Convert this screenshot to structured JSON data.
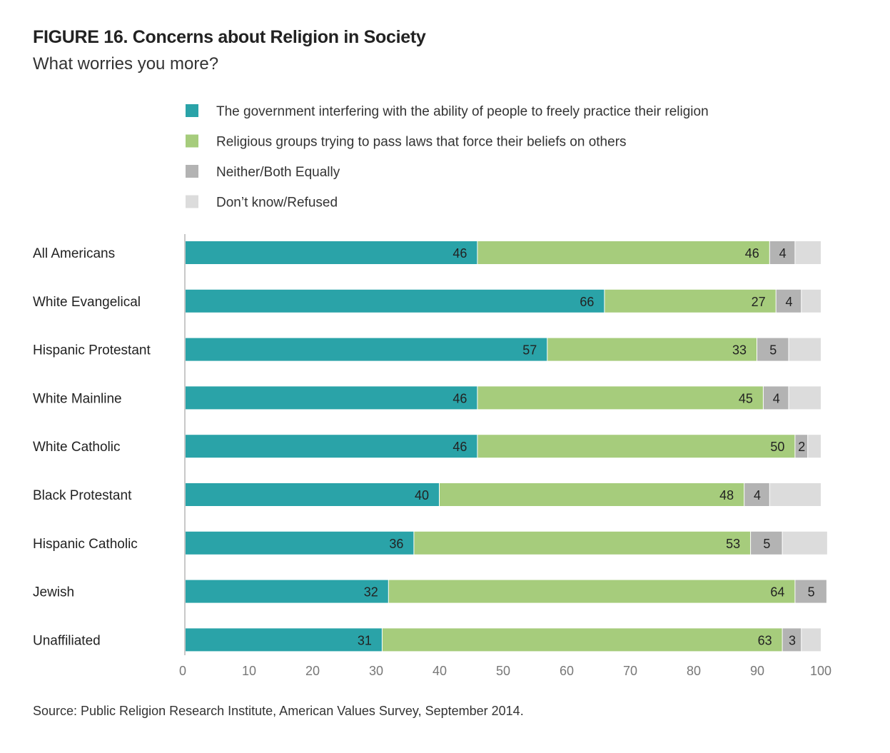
{
  "chart_data": {
    "type": "bar",
    "orientation": "horizontal",
    "stacked": true,
    "title": "FIGURE 16. Concerns about Religion in Society",
    "subtitle": "What worries you more?",
    "source": "Source: Public Religion Research Institute, American Values Survey, September 2014.",
    "categories": [
      "All Americans",
      "White Evangelical",
      "Hispanic Protestant",
      "White Mainline",
      "White Catholic",
      "Black Protestant",
      "Hispanic Catholic",
      "Jewish",
      "Unaffiliated"
    ],
    "series": [
      {
        "name": "The government interfering with the ability of people to freely practice their religion",
        "color": "#2aa3a8",
        "values": [
          46,
          66,
          57,
          46,
          46,
          40,
          36,
          32,
          31
        ],
        "labels": [
          "46",
          "66",
          "57",
          "46",
          "46",
          "40",
          "36",
          "32",
          "31"
        ]
      },
      {
        "name": "Religious groups trying to pass laws that force their beliefs on others",
        "color": "#a6cc7c",
        "values": [
          46,
          27,
          33,
          45,
          50,
          48,
          53,
          64,
          63
        ],
        "labels": [
          "46",
          "27",
          "33",
          "45",
          "50",
          "48",
          "53",
          "64",
          "63"
        ]
      },
      {
        "name": "Neither/Both Equally",
        "color": "#b3b3b3",
        "values": [
          4,
          4,
          5,
          4,
          2,
          4,
          5,
          5,
          3
        ],
        "labels": [
          "4",
          "4",
          "5",
          "4",
          "2",
          "4",
          "5",
          "5",
          "3"
        ]
      },
      {
        "name": "Don’t know/Refused",
        "color": "#dcdcdc",
        "values": [
          4,
          3,
          5,
          5,
          2,
          8,
          7,
          0,
          3
        ],
        "labels": [
          "",
          "",
          "",
          "",
          "",
          "",
          "",
          "",
          ""
        ]
      }
    ],
    "xlim": [
      0,
      100
    ],
    "xticks": [
      "0",
      "10",
      "20",
      "30",
      "40",
      "50",
      "60",
      "70",
      "80",
      "90",
      "100"
    ],
    "legend_position": "top",
    "grid": false
  }
}
